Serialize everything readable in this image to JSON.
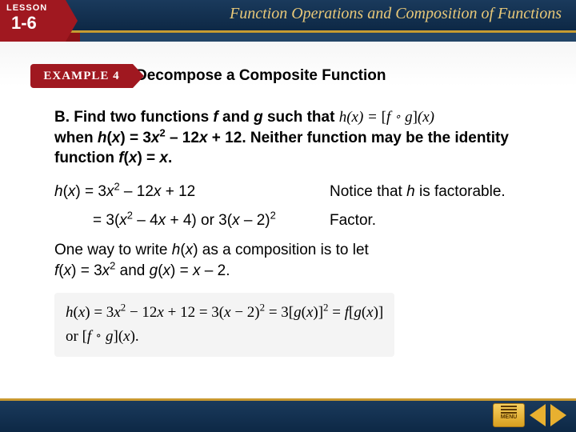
{
  "header": {
    "lesson_label": "LESSON",
    "lesson_number": "1-6",
    "chapter_title": "Function Operations and Composition of Functions"
  },
  "example": {
    "label": "EXAMPLE 4",
    "title": "Decompose a Composite Function"
  },
  "problem": {
    "part": "B.",
    "line1a": "Find two functions ",
    "line1_f": "f",
    "line1b": " and ",
    "line1_g": "g",
    "line1c": " such that ",
    "line1_eq": "h(x) = [f ∘ g](x)",
    "line2a": "when ",
    "line2_eq": "h(x) = 3x² – 12x + 12.",
    "line2b": " Neither function may be the identity function ",
    "line2_id": "f(x) = x.",
    "h_lhs": "h",
    "h_arg": "(x)",
    "h_rhs": " = 3x",
    "h_exp": "2",
    "h_tail": " – 12x + 12"
  },
  "steps": [
    {
      "math_pre": "h",
      "math_arg": "(x) = 3",
      "math_x1": "x",
      "math_sup1": "2",
      "math_mid": " – 12",
      "math_x2": "x",
      "math_tail": " + 12",
      "note_a": "Notice that ",
      "note_h": "h",
      "note_b": " is factorable."
    },
    {
      "math_pre": "= 3(",
      "math_x1": "x",
      "math_sup1": "2",
      "math_mid": " – 4",
      "math_x2": "x",
      "math_mid2": " + 4) or 3(",
      "math_x3": "x",
      "math_tail": " – 2)",
      "math_sup2": "2",
      "note": "Factor."
    }
  ],
  "conclusion": {
    "text_a": "One way to write ",
    "h": "h",
    "text_b": "(",
    "x1": "x",
    "text_c": ") as a composition is to let ",
    "f_def": "f",
    "text_d": "(",
    "x2": "x",
    "text_e": ") = 3",
    "x3": "x",
    "sup": "2",
    "text_f": " and ",
    "g": "g",
    "text_g": "(",
    "x4": "x",
    "text_h": ") = ",
    "x5": "x",
    "text_i": " – 2."
  },
  "equation_box": {
    "line1": "h(x) = 3x² − 12x + 12 = 3(x − 2)² = 3[g(x)]² = f[g(x)]",
    "line2": "or [f ∘ g](x)."
  },
  "footer": {
    "menu_label": "MENU"
  },
  "colors": {
    "header_bg": "#0d2845",
    "accent_red": "#a01820",
    "gold": "#c89830",
    "text": "#000000"
  }
}
